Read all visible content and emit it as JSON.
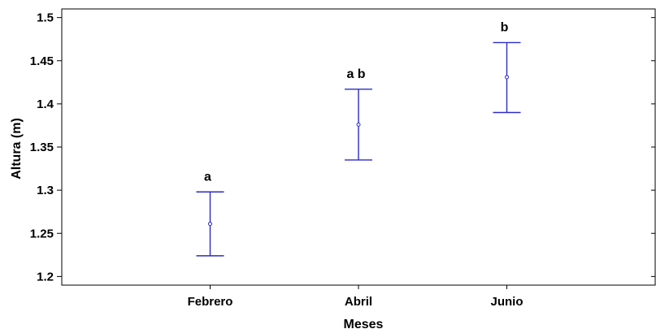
{
  "chart_data": {
    "type": "scatter",
    "title": "",
    "xlabel": "Meses",
    "ylabel": "Altura (m)",
    "categories": [
      "Febrero",
      "Abril",
      "Junio"
    ],
    "means": [
      1.261,
      1.376,
      1.431
    ],
    "lower": [
      1.224,
      1.335,
      1.39
    ],
    "upper": [
      1.298,
      1.417,
      1.471
    ],
    "group_letters": [
      "a",
      "a b",
      "b"
    ],
    "ylim": [
      1.19,
      1.51
    ],
    "yticks": [
      1.2,
      1.25,
      1.3,
      1.35,
      1.4,
      1.45,
      1.5
    ],
    "ytick_labels": [
      "1.2",
      "1.25",
      "1.3",
      "1.35",
      "1.4",
      "1.45",
      "1.5"
    ],
    "x_positions": [
      1,
      2,
      3
    ],
    "xlim": [
      0,
      4
    ],
    "grid": false,
    "colors": {
      "interval": "#2b2bc8",
      "axis": "#000000"
    }
  }
}
